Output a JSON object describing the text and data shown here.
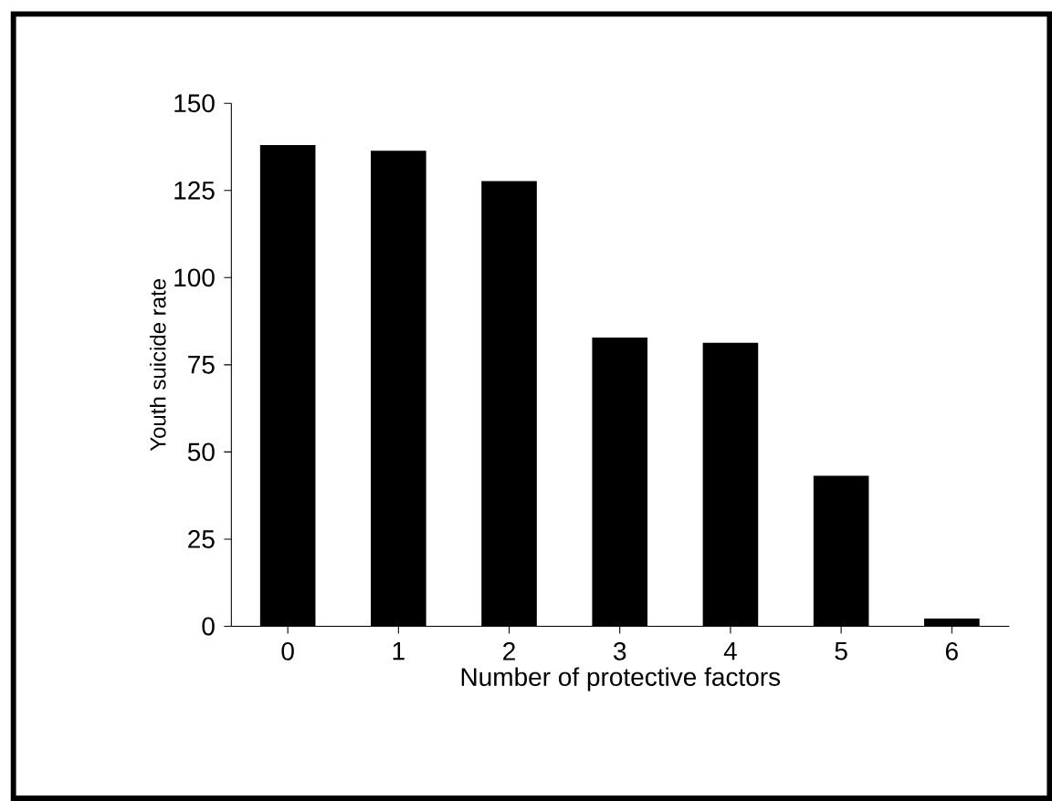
{
  "chart_data": {
    "type": "bar",
    "xlabel": "Number of protective factors",
    "ylabel": "Youth suicide rate",
    "categories": [
      "0",
      "1",
      "2",
      "3",
      "4",
      "5",
      "6"
    ],
    "values": [
      138,
      136.4,
      127.7,
      82.8,
      81.3,
      43.2,
      2.2
    ],
    "color": "#000000",
    "ylim": [
      0,
      150
    ],
    "yticks": [
      0,
      25,
      50,
      75,
      100,
      125,
      150
    ],
    "grid": false
  }
}
